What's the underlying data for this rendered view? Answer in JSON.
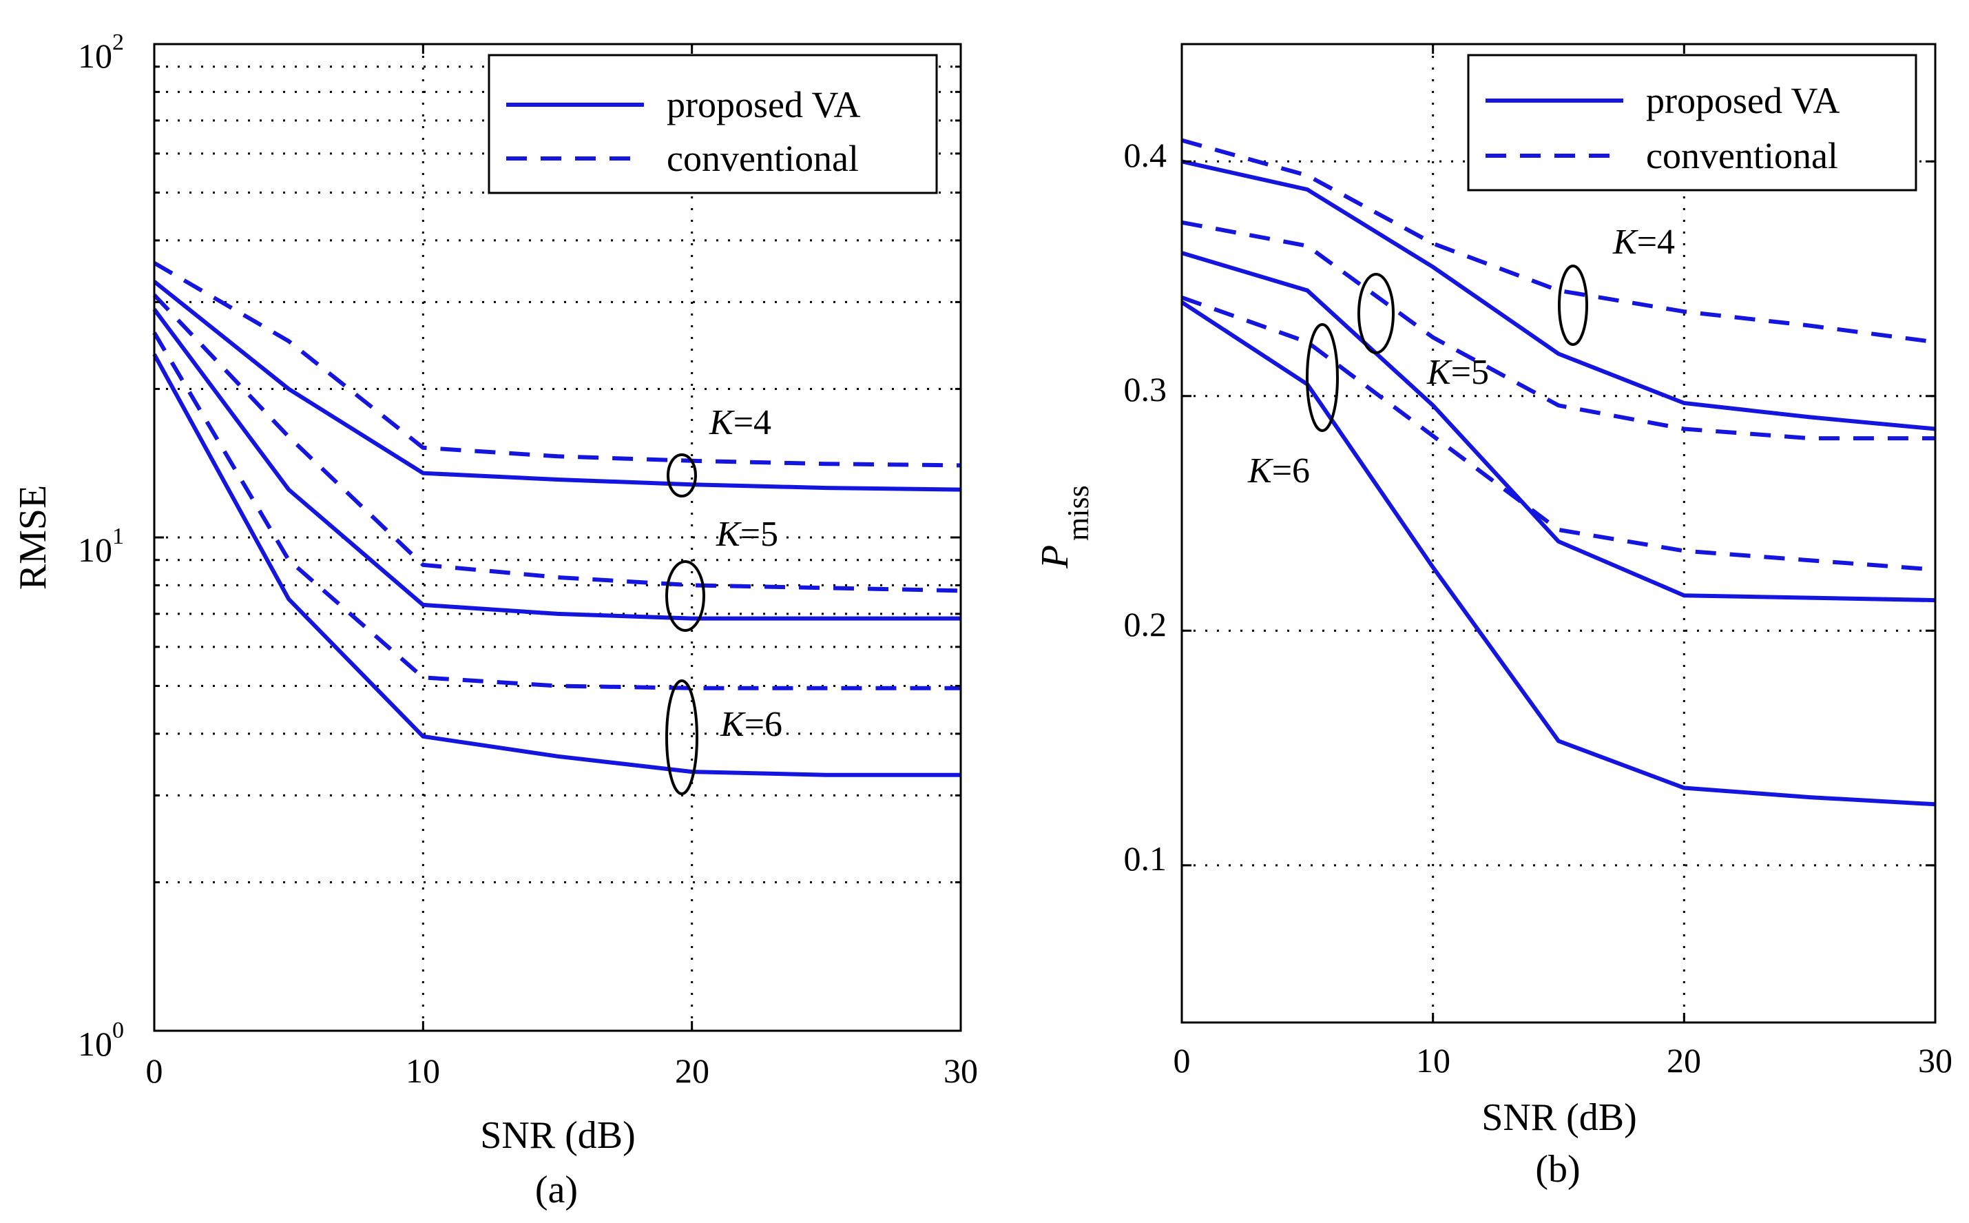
{
  "chart_data": [
    {
      "type": "line",
      "panel_label": "(a)",
      "xlabel": "SNR (dB)",
      "ylabel": "RMSE",
      "yscale": "log",
      "xlim": [
        0,
        30
      ],
      "ylim": [
        1,
        100
      ],
      "x_ticks": [
        "0",
        "10",
        "20",
        "30"
      ],
      "y_ticks": [
        {
          "base": "10",
          "exp": "0"
        },
        {
          "base": "10",
          "exp": "1"
        },
        {
          "base": "10",
          "exp": "2"
        }
      ],
      "grid": true,
      "legend": {
        "placement": "top-right",
        "entries": [
          {
            "label": "proposed VA",
            "style": "solid"
          },
          {
            "label": "conventional",
            "style": "dashed"
          }
        ]
      },
      "annotations": [
        {
          "k": "K",
          "rest": "=4"
        },
        {
          "k": "K",
          "rest": "=5"
        },
        {
          "k": "K",
          "rest": "=6"
        }
      ],
      "series": [
        {
          "name": "proposed VA, K=4",
          "style": "solid",
          "x": [
            0,
            5,
            10,
            15,
            20,
            25,
            30
          ],
          "y": [
            33,
            20,
            13.5,
            13.1,
            12.8,
            12.6,
            12.5
          ]
        },
        {
          "name": "conventional, K=4",
          "style": "dashed",
          "x": [
            0,
            5,
            10,
            15,
            20,
            25,
            30
          ],
          "y": [
            36,
            25,
            15.2,
            14.6,
            14.3,
            14.1,
            14.0
          ]
        },
        {
          "name": "proposed VA, K=5",
          "style": "solid",
          "x": [
            0,
            5,
            10,
            15,
            20,
            25,
            30
          ],
          "y": [
            29,
            12.5,
            7.3,
            7.0,
            6.85,
            6.85,
            6.85
          ]
        },
        {
          "name": "conventional, K=5",
          "style": "dashed",
          "x": [
            0,
            5,
            10,
            15,
            20,
            25,
            30
          ],
          "y": [
            31,
            16,
            8.8,
            8.3,
            8.0,
            7.9,
            7.8
          ]
        },
        {
          "name": "proposed VA, K=6",
          "style": "solid",
          "x": [
            0,
            5,
            10,
            15,
            20,
            25,
            30
          ],
          "y": [
            23.5,
            7.5,
            3.95,
            3.6,
            3.35,
            3.3,
            3.3
          ]
        },
        {
          "name": "conventional, K=6",
          "style": "dashed",
          "x": [
            0,
            5,
            10,
            15,
            20,
            25,
            30
          ],
          "y": [
            26,
            9,
            5.2,
            5.0,
            4.95,
            4.95,
            4.95
          ]
        }
      ]
    },
    {
      "type": "line",
      "panel_label": "(b)",
      "xlabel": "SNR (dB)",
      "ylabel_main": "P",
      "ylabel_sub": "miss",
      "yscale": "linear",
      "xlim": [
        0,
        30
      ],
      "ylim": [
        0.033,
        0.45
      ],
      "x_ticks": [
        "0",
        "10",
        "20",
        "30"
      ],
      "y_ticks": [
        "0.1",
        "0.2",
        "0.3",
        "0.4"
      ],
      "grid": true,
      "legend": {
        "placement": "top-right",
        "entries": [
          {
            "label": "proposed VA",
            "style": "solid"
          },
          {
            "label": "conventional",
            "style": "dashed"
          }
        ]
      },
      "annotations": [
        {
          "k": "K",
          "rest": "=4"
        },
        {
          "k": "K",
          "rest": "=5"
        },
        {
          "k": "K",
          "rest": "=6"
        }
      ],
      "series": [
        {
          "name": "proposed VA, K=4",
          "style": "solid",
          "x": [
            0,
            5,
            10,
            15,
            20,
            25,
            30
          ],
          "y": [
            0.4,
            0.388,
            0.355,
            0.318,
            0.297,
            0.291,
            0.286
          ]
        },
        {
          "name": "conventional, K=4",
          "style": "dashed",
          "x": [
            0,
            5,
            10,
            15,
            20,
            25,
            30
          ],
          "y": [
            0.409,
            0.394,
            0.365,
            0.345,
            0.336,
            0.33,
            0.323
          ]
        },
        {
          "name": "proposed VA, K=5",
          "style": "solid",
          "x": [
            0,
            5,
            10,
            15,
            20,
            25,
            30
          ],
          "y": [
            0.361,
            0.345,
            0.296,
            0.238,
            0.215,
            0.214,
            0.213
          ]
        },
        {
          "name": "conventional, K=5",
          "style": "dashed",
          "x": [
            0,
            5,
            10,
            15,
            20,
            25,
            30
          ],
          "y": [
            0.374,
            0.364,
            0.325,
            0.296,
            0.286,
            0.282,
            0.282
          ]
        },
        {
          "name": "proposed VA, K=6",
          "style": "solid",
          "x": [
            0,
            5,
            10,
            15,
            20,
            25,
            30
          ],
          "y": [
            0.34,
            0.305,
            0.227,
            0.153,
            0.133,
            0.129,
            0.126
          ]
        },
        {
          "name": "conventional, K=6",
          "style": "dashed",
          "x": [
            0,
            5,
            10,
            15,
            20,
            25,
            30
          ],
          "y": [
            0.342,
            0.323,
            0.283,
            0.243,
            0.234,
            0.23,
            0.226
          ]
        }
      ]
    }
  ]
}
